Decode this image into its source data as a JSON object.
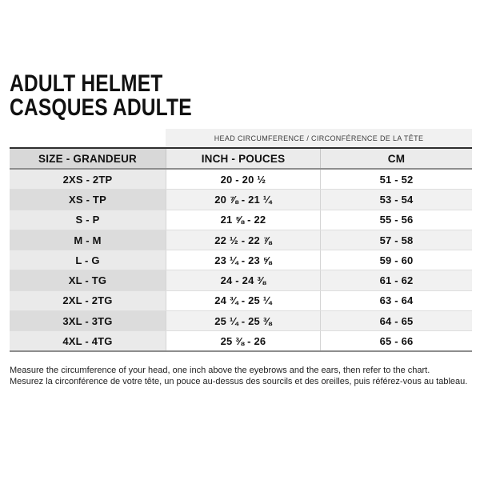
{
  "header": {
    "title_en": "ADULT HELMET",
    "title_fr": "CASQUES ADULTE"
  },
  "table": {
    "band_header": "HEAD CIRCUMFERENCE / CIRCONFÉRENCE DE LA TÊTE",
    "columns": {
      "size": "SIZE - GRANDEUR",
      "inch": "INCH - POUCES",
      "cm": "CM"
    },
    "rows": [
      {
        "size": "2XS - 2TP",
        "inch": "20 - 20 ½",
        "cm": "51 - 52"
      },
      {
        "size": "XS - TP",
        "inch": "20 ⅞ - 21 ¼",
        "cm": "53 - 54"
      },
      {
        "size": "S - P",
        "inch": "21 ⅝ - 22",
        "cm": "55 - 56"
      },
      {
        "size": "M - M",
        "inch": "22 ½ - 22 ⅞",
        "cm": "57 - 58"
      },
      {
        "size": "L - G",
        "inch": "23 ¼ - 23 ⅝",
        "cm": "59 - 60"
      },
      {
        "size": "XL - TG",
        "inch": "24 - 24 ⅜",
        "cm": "61 - 62"
      },
      {
        "size": "2XL - 2TG",
        "inch": "24 ¾ - 25 ¼",
        "cm": "63 - 64"
      },
      {
        "size": "3XL - 3TG",
        "inch": "25 ¼ - 25 ⅜",
        "cm": "64 - 65"
      },
      {
        "size": "4XL - 4TG",
        "inch": "25 ⅜ - 26",
        "cm": "65 - 66"
      }
    ]
  },
  "footer": {
    "line_en": "Measure the circumference of your head, one inch above the eyebrows and the ears, then refer to the chart.",
    "line_fr": "Mesurez la circonférence de votre tête, un pouce au-dessus des sourcils et des oreilles, puis référez-vous au tableau."
  }
}
